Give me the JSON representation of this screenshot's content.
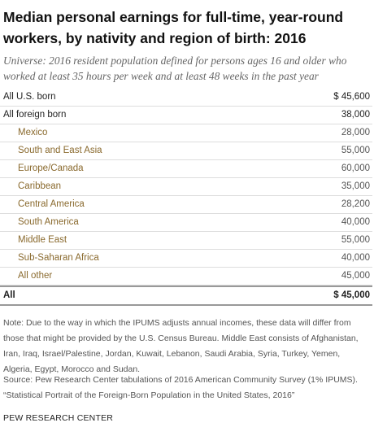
{
  "header": {
    "title": "Median personal earnings for full-time, year-round workers, by nativity and region of birth: 2016",
    "universe": "Universe: 2016 resident population defined for persons ages 16 and older who worked at least 35 hours per week and at least 48 weeks in the past year"
  },
  "table": {
    "rows": [
      {
        "label": "All U.S. born",
        "value": "$ 45,600"
      },
      {
        "label": "All foreign born",
        "value": "38,000",
        "subgroups": [
          {
            "label": "Mexico",
            "value": "28,000"
          },
          {
            "label": "South and East Asia",
            "value": "55,000"
          },
          {
            "label": "Europe/Canada",
            "value": "60,000"
          },
          {
            "label": "Caribbean",
            "value": "35,000"
          },
          {
            "label": "Central America",
            "value": "28,200"
          },
          {
            "label": "South America",
            "value": "40,000"
          },
          {
            "label": "Middle East",
            "value": "55,000"
          },
          {
            "label": "Sub-Saharan Africa",
            "value": "40,000"
          },
          {
            "label": "All other",
            "value": "45,000"
          }
        ]
      }
    ],
    "total": {
      "label": "All",
      "value": "$ 45,000"
    }
  },
  "note": "Note: Due to the way in which the IPUMS adjusts annual incomes, these data will differ from those that might be provided by the U.S. Census Bureau. Middle East consists of Afghanistan, Iran, Iraq, Israel/Palestine, Jordan, Kuwait, Lebanon, Saudi Arabia, Syria, Turkey, Yemen, Algeria, Egypt, Morocco and Sudan.",
  "source": [
    "Source: Pew Research Center tabulations of 2016 American Community Survey (1% IPUMS).",
    "“Statistical Portrait of the Foreign-Born Population in the United States, 2016”"
  ],
  "footer": "PEW RESEARCH CENTER"
}
